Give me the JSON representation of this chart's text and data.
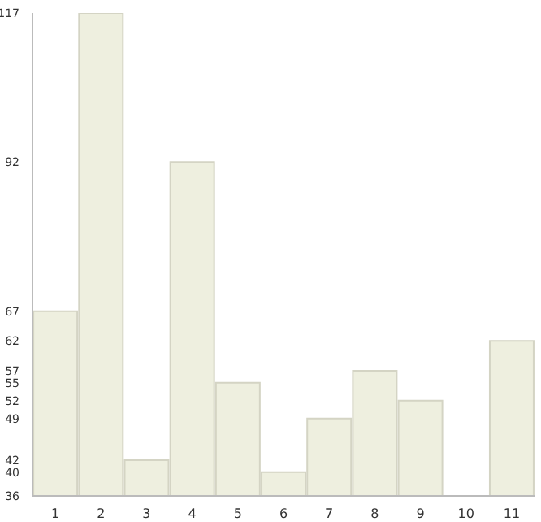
{
  "chart_data": {
    "type": "bar",
    "categories": [
      "1",
      "2",
      "3",
      "4",
      "5",
      "6",
      "7",
      "8",
      "9",
      "10",
      "11"
    ],
    "values": [
      67,
      117,
      42,
      92,
      55,
      40,
      49,
      57,
      52,
      36,
      62
    ],
    "color": "#eeefdf",
    "ylim": [
      36,
      117
    ],
    "yticks": [
      36,
      40,
      42,
      49,
      52,
      55,
      57,
      62,
      67,
      92,
      117
    ],
    "grid": false,
    "legend": false
  }
}
